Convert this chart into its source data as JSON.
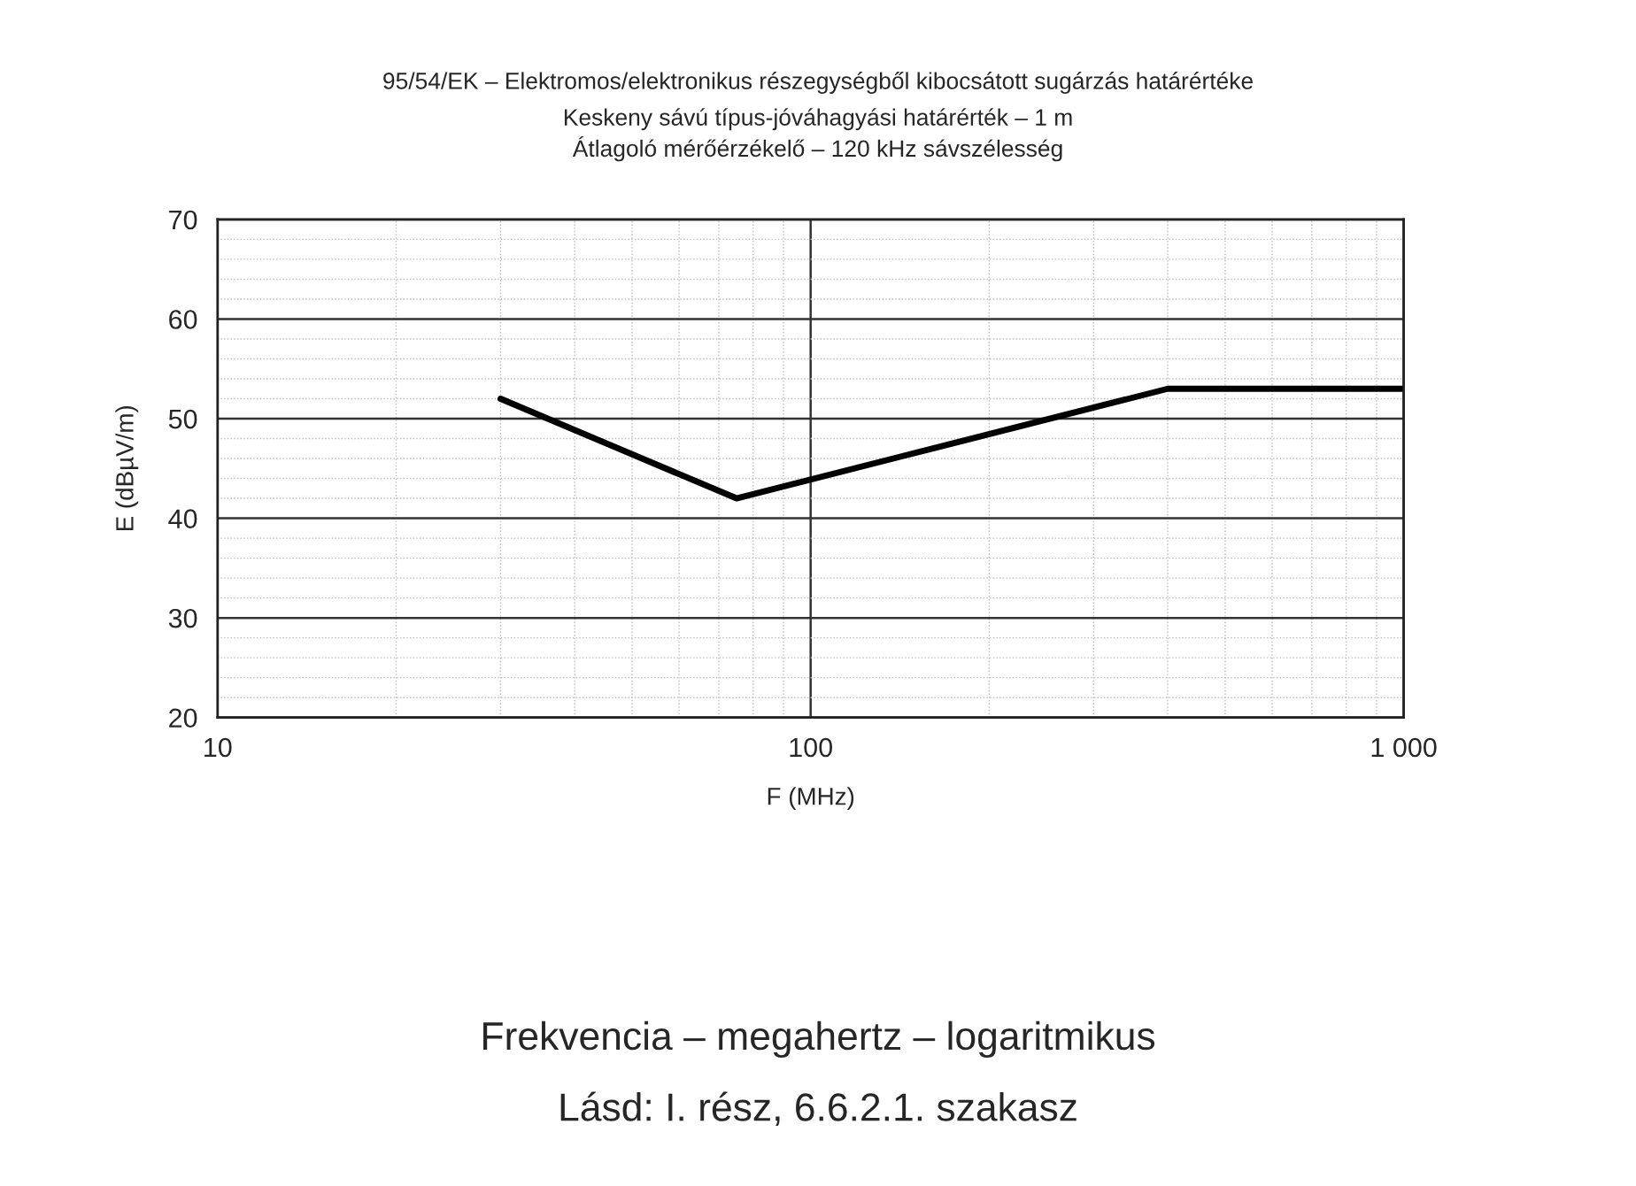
{
  "chart_data": {
    "type": "line",
    "title": "95/54/EK – Elektromos/elektronikus részegységből kibocsátott sugárzás határértéke",
    "subtitle": "Keskeny sávú típus-jóváhagyási határérték – 1 m\nÁtlagoló mérőérzékelő – 120 kHz sávszélesség",
    "xlabel": "F (MHz)",
    "ylabel": "E (dBµV/m)",
    "x": [
      30,
      75,
      400,
      1000
    ],
    "series": [
      {
        "color": "#000000",
        "values": [
          52,
          42,
          53,
          53
        ]
      }
    ],
    "log": "x",
    "xlim": [
      10,
      1000
    ],
    "xticks": [
      10,
      100,
      {
        "value": 1000,
        "label": "1 000"
      }
    ],
    "ylim": [
      20,
      70
    ],
    "yticks": [
      20,
      30,
      40,
      50,
      60,
      70
    ],
    "grid": true,
    "marker": "none",
    "line_style": "solid",
    "annotations": [
      "Frekvencia – megahertz – logaritmikus",
      "Lásd: I. rész, 6.6.2.1. szakasz"
    ]
  }
}
